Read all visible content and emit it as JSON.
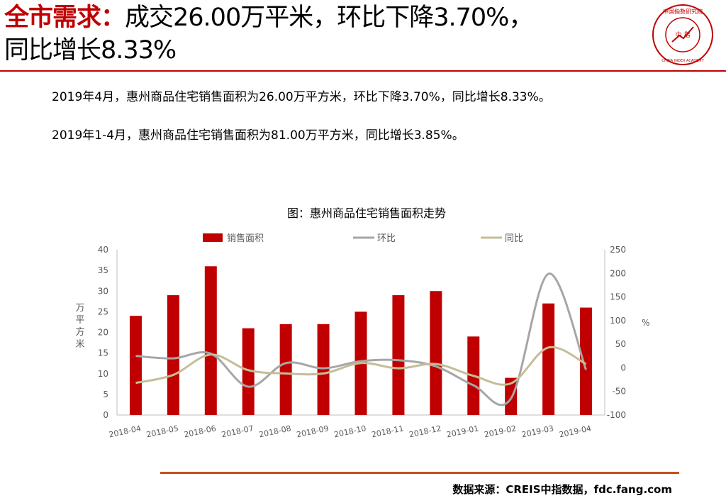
{
  "header": {
    "title_highlight": "全市需求：",
    "title_line1_rest": "成交26.00万平米，环比下降3.70%，",
    "title_line2": "同比增长8.33%"
  },
  "logo": {
    "top_text": "中国指数研究院",
    "center_text": "中 指",
    "bottom_text": "CHINA INDEX ACADEMY"
  },
  "paragraphs": {
    "p1": "2019年4月，惠州商品住宅销售面积为26.00万平方米，环比下降3.70%，同比增长8.33%。",
    "p2": "2019年1-4月，惠州商品住宅销售面积为81.00万平方米，同比增长3.85%。"
  },
  "footer": {
    "source": "数据来源：CREIS中指数据，fdc.fang.com"
  },
  "colors": {
    "bar": "#c00000",
    "mom_line": "#a6a6a6",
    "yoy_line": "#c4bd97",
    "accent": "#c00000"
  },
  "chart_data": {
    "type": "bar",
    "title": "图：惠州商品住宅销售面积走势",
    "categories": [
      "2018-04",
      "2018-05",
      "2018-06",
      "2018-07",
      "2018-08",
      "2018-09",
      "2018-10",
      "2018-11",
      "2018-12",
      "2019-01",
      "2019-02",
      "2019-03",
      "2019-04"
    ],
    "series": [
      {
        "name": "销售面积",
        "type": "bar",
        "axis": "left",
        "values": [
          24,
          29,
          36,
          21,
          22,
          22,
          25,
          29,
          30,
          19,
          9,
          27,
          26
        ]
      },
      {
        "name": "环比",
        "type": "line",
        "axis": "right",
        "values": [
          25,
          20,
          30,
          -40,
          10,
          -1,
          14,
          16,
          3,
          -37,
          -65,
          199,
          -4
        ]
      },
      {
        "name": "同比",
        "type": "line",
        "axis": "right",
        "values": [
          -32,
          -15,
          28,
          -5,
          -12,
          -12,
          10,
          -1,
          8,
          -17,
          -33,
          43,
          8
        ]
      }
    ],
    "ylabel": "万平方米",
    "ylabel_right": "%",
    "ylim": [
      0,
      40
    ],
    "y_ticks": [
      0,
      5,
      10,
      15,
      20,
      25,
      30,
      35,
      40
    ],
    "ylim_right": [
      -100,
      250
    ],
    "y_ticks_right": [
      -100,
      -50,
      0,
      50,
      100,
      150,
      200,
      250
    ],
    "legend_position": "top",
    "grid": false
  }
}
